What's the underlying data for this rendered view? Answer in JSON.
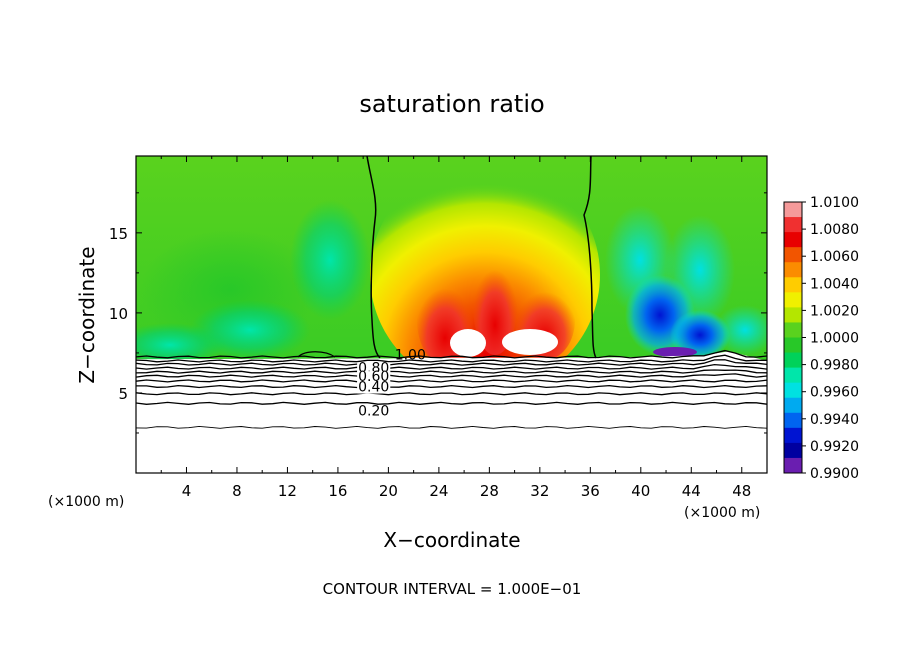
{
  "chart_data": {
    "type": "heatmap",
    "title": "saturation ratio",
    "xlabel": "X−coordinate",
    "ylabel": "Z−coordinate",
    "x_unit_left": "(×1000 m)",
    "x_unit_right": "(×1000 m)",
    "xlim": [
      0,
      50
    ],
    "ylim": [
      0,
      19.8
    ],
    "x_ticks": [
      4,
      8,
      12,
      16,
      20,
      24,
      28,
      32,
      36,
      40,
      44,
      48
    ],
    "y_ticks": [
      5,
      10,
      15
    ],
    "footer": "CONTOUR INTERVAL = 1.000E−01",
    "colorbar": {
      "min": 0.99,
      "max": 1.01,
      "labels": [
        "1.0100",
        "1.0080",
        "1.0060",
        "1.0040",
        "1.0020",
        "1.0000",
        "0.9980",
        "0.9960",
        "0.9940",
        "0.9920",
        "0.9900"
      ],
      "colors": [
        "#f59a9a",
        "#f03030",
        "#e80000",
        "#f25500",
        "#fb8c00",
        "#ffcc00",
        "#f0f000",
        "#b4e600",
        "#5ad21e",
        "#28c828",
        "#00d25a",
        "#00e6aa",
        "#00e1e1",
        "#00aaf0",
        "#0064f0",
        "#0014d2",
        "#0000a0",
        "#6a1eb0"
      ]
    },
    "contour_labels": [
      {
        "text": "1.00",
        "x": 20.5,
        "z": 7.4
      },
      {
        "text": "0.80",
        "x": 17.6,
        "z": 6.6
      },
      {
        "text": "0.60",
        "x": 17.6,
        "z": 6.05
      },
      {
        "text": "0.40",
        "x": 17.6,
        "z": 5.4
      },
      {
        "text": "0.20",
        "x": 17.6,
        "z": 3.9
      }
    ],
    "contour_levels_z": [
      7.25,
      7.0,
      6.8,
      6.55,
      6.3,
      6.05,
      5.75,
      5.4,
      4.95,
      4.35,
      2.85
    ],
    "ridge_x": [
      0,
      20,
      22.5,
      36,
      40,
      45,
      47,
      50
    ],
    "ridge_z": [
      7.1,
      7.15,
      7.2,
      7.2,
      7.25,
      7.35,
      7.6,
      7.0
    ]
  }
}
